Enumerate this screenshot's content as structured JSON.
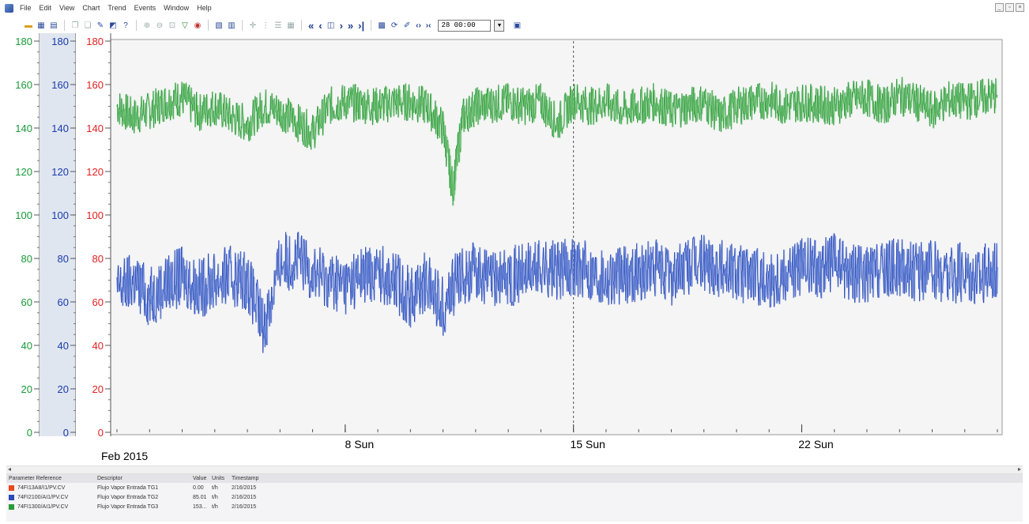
{
  "menu": [
    "File",
    "Edit",
    "View",
    "Chart",
    "Trend",
    "Events",
    "Window",
    "Help"
  ],
  "toolbar": {
    "time_value": "28 00:00"
  },
  "chart_data": {
    "type": "line",
    "x_start_label": "Feb 2015",
    "x_ticks": [
      {
        "day": 8,
        "label": "8 Sun"
      },
      {
        "day": 15,
        "label": "15 Sun"
      },
      {
        "day": 22,
        "label": "22 Sun"
      }
    ],
    "xlim_days": [
      1,
      28
    ],
    "ylim": [
      0,
      180
    ],
    "y_ticks": [
      0,
      20,
      40,
      60,
      80,
      100,
      120,
      140,
      160,
      180
    ],
    "y_axes_colors": [
      "#1a9a3a",
      "#1a3ab0",
      "#e02020"
    ],
    "cursor_day": 15,
    "series": [
      {
        "name": "74FI1300/AI1/PV.CV",
        "color": "#2a9a3a",
        "x": [
          1,
          1.5,
          2,
          2.5,
          3,
          3.5,
          4,
          4.5,
          5,
          5.5,
          6,
          6.5,
          7,
          7.5,
          8,
          8.5,
          9,
          9.5,
          10,
          10.5,
          11,
          11.3,
          11.6,
          12,
          12.5,
          13,
          13.5,
          14,
          14.5,
          15,
          15.5,
          16,
          16.5,
          17,
          17.5,
          18,
          18.5,
          19,
          19.5,
          20,
          20.5,
          21,
          21.5,
          22,
          22.5,
          23,
          23.5,
          24,
          24.5,
          25,
          25.5,
          26,
          26.5,
          27,
          27.5,
          28
        ],
        "values": [
          150,
          145,
          148,
          152,
          154,
          147,
          150,
          145,
          142,
          150,
          148,
          143,
          138,
          150,
          152,
          151,
          150,
          152,
          152,
          150,
          140,
          112,
          145,
          150,
          151,
          152,
          150,
          152,
          142,
          153,
          150,
          152,
          148,
          150,
          152,
          148,
          150,
          152,
          145,
          150,
          152,
          153,
          150,
          152,
          151,
          150,
          153,
          154,
          150,
          155,
          152,
          148,
          153,
          152,
          154,
          155
        ]
      },
      {
        "name": "74FI2100/AI1/PV.CV",
        "color": "#2a4ab8",
        "x": [
          1,
          1.5,
          2,
          2.5,
          3,
          3.5,
          4,
          4.5,
          5,
          5.5,
          6,
          6.5,
          7,
          7.5,
          8,
          8.5,
          9,
          9.5,
          10,
          10.5,
          11,
          11.5,
          12,
          12.5,
          13,
          13.5,
          14,
          14.5,
          15,
          15.5,
          16,
          16.5,
          17,
          17.5,
          18,
          18.5,
          19,
          19.5,
          20,
          20.5,
          21,
          21.5,
          22,
          22.5,
          23,
          23.5,
          24,
          24.5,
          25,
          25.5,
          26,
          26.5,
          27,
          27.5,
          28
        ],
        "values": [
          65,
          70,
          62,
          68,
          72,
          66,
          70,
          72,
          70,
          48,
          78,
          80,
          74,
          70,
          68,
          72,
          74,
          70,
          62,
          70,
          58,
          72,
          74,
          70,
          72,
          73,
          76,
          74,
          77,
          74,
          72,
          72,
          74,
          75,
          72,
          76,
          78,
          76,
          74,
          72,
          70,
          74,
          76,
          75,
          78,
          74,
          72,
          74,
          76,
          74,
          75,
          72,
          74,
          72,
          76
        ]
      }
    ]
  },
  "legend": {
    "headers": [
      "Parameter Reference",
      "Descriptor",
      "Value",
      "Units",
      "Timestamp"
    ],
    "rows": [
      {
        "color": "#e84a1a",
        "ref": "74FI13A8/I1/PV.CV",
        "descriptor": "Flujo Vapor Entrada TG1",
        "value": "0.00",
        "units": "t/h",
        "timestamp": "2/16/2015"
      },
      {
        "color": "#2a4ab8",
        "ref": "74FI2100/AI1/PV.CV",
        "descriptor": "Flujo Vapor Entrada TG2",
        "value": "85.01",
        "units": "t/h",
        "timestamp": "2/16/2015"
      },
      {
        "color": "#2a9a3a",
        "ref": "74FI1300/AI1/PV.CV",
        "descriptor": "Flujo Vapor Entrada TG3",
        "value": "153...",
        "units": "t/h",
        "timestamp": "2/16/2015"
      }
    ]
  }
}
